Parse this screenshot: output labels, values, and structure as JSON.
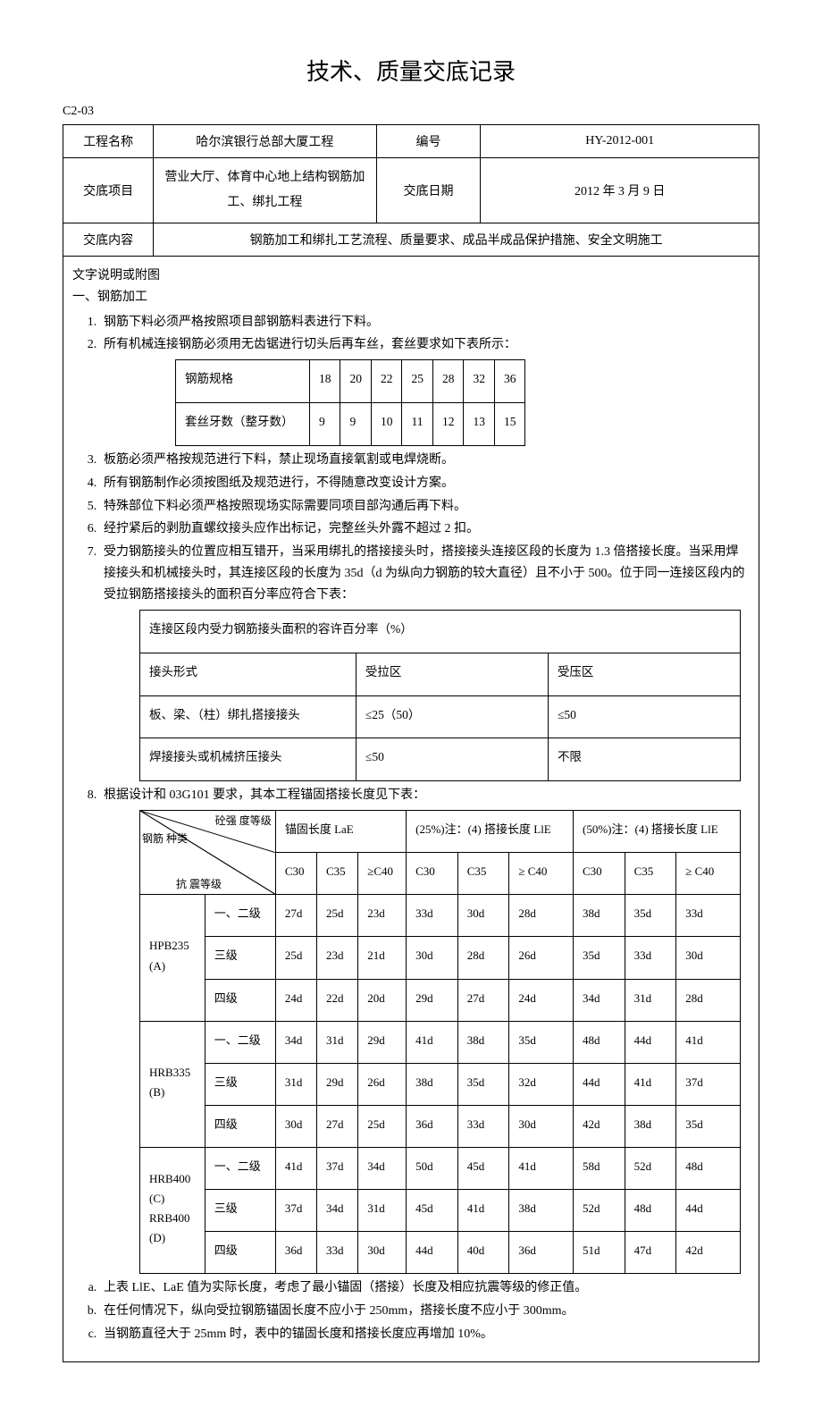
{
  "title": "技术、质量交底记录",
  "doc_code": "C2-03",
  "header": {
    "project_label": "工程名称",
    "project_value": "哈尔滨银行总部大厦工程",
    "number_label": "编号",
    "number_value": "HY-2012-001",
    "item_label": "交底项目",
    "item_value": "营业大厅、体育中心地上结构钢筋加工、绑扎工程",
    "date_label": "交底日期",
    "date_value": "2012 年 3 月 9 日",
    "content_label": "交底内容",
    "content_value": "钢筋加工和绑扎工艺流程、质量要求、成品半成品保护措施、安全文明施工"
  },
  "body": {
    "intro": "文字说明或附图",
    "sec1_title": "一、钢筋加工",
    "li1": "钢筋下料必须严格按照项目部钢筋料表进行下料。",
    "li2": "所有机械连接钢筋必须用无齿锯进行切头后再车丝，套丝要求如下表所示：",
    "thread_table": {
      "row1_label": "钢筋规格",
      "specs": [
        "18",
        "20",
        "22",
        "25",
        "28",
        "32",
        "36"
      ],
      "row2_label": "套丝牙数（整牙数）",
      "counts": [
        "9",
        "9",
        "10",
        "11",
        "12",
        "13",
        "15"
      ]
    },
    "li3": "板筋必须严格按规范进行下料，禁止现场直接氧割或电焊烧断。",
    "li4": "所有钢筋制作必须按图纸及规范进行，不得随意改变设计方案。",
    "li5": "特殊部位下料必须严格按照现场实际需要同项目部沟通后再下料。",
    "li6": "经拧紧后的剥肋直螺纹接头应作出标记，完整丝头外露不超过 2 扣。",
    "li7": "受力钢筋接头的位置应相互错开，当采用绑扎的搭接接头时，搭接接头连接区段的长度为 1.3 倍搭接长度。当采用焊接接头和机械接头时，其连接区段的长度为 35d（d 为纵向力钢筋的较大直径）且不小于 500。位于同一连接区段内的受拉钢筋搭接接头的面积百分率应符合下表：",
    "joint_table": {
      "header": "连接区段内受力钢筋接头面积的容许百分率（%）",
      "h_form": "接头形式",
      "h_tension": "受拉区",
      "h_comp": "受压区",
      "r1_form": "板、梁、（柱）绑扎搭接接头",
      "r1_t": "≤25（50）",
      "r1_c": "≤50",
      "r2_form": "焊接接头或机械挤压接头",
      "r2_t": "≤50",
      "r2_c": "不限"
    },
    "li8": "根据设计和 03G101 要求，其本工程锚固搭接长度见下表：",
    "anchor_table": {
      "diag_left": "钢筋\n种类",
      "diag_top": "砼强\n度等级",
      "diag_bottom": "抗\n震等级",
      "h_anchor": "锚固长度 LaE",
      "h_25": "(25%)注：(4) 搭接长度 LlE",
      "h_50": "(50%)注：(4) 搭接长度 LlE",
      "grades": [
        "C30",
        "C35",
        "≥C40",
        "C30",
        "C35",
        "≥\nC40",
        "C30",
        "C35",
        "≥\nC40"
      ],
      "rows": [
        {
          "type": "HPB235\n(A)",
          "level": "一、二级",
          "cells": [
            "27d",
            "25d",
            "23d",
            "33d",
            "30d",
            "28d",
            "38d",
            "35d",
            "33d"
          ]
        },
        {
          "type": "",
          "level": "三级",
          "cells": [
            "25d",
            "23d",
            "21d",
            "30d",
            "28d",
            "26d",
            "35d",
            "33d",
            "30d"
          ]
        },
        {
          "type": "",
          "level": "四级",
          "cells": [
            "24d",
            "22d",
            "20d",
            "29d",
            "27d",
            "24d",
            "34d",
            "31d",
            "28d"
          ]
        },
        {
          "type": "HRB335\n(B)",
          "level": "一、二级",
          "cells": [
            "34d",
            "31d",
            "29d",
            "41d",
            "38d",
            "35d",
            "48d",
            "44d",
            "41d"
          ]
        },
        {
          "type": "",
          "level": "三级",
          "cells": [
            "31d",
            "29d",
            "26d",
            "38d",
            "35d",
            "32d",
            "44d",
            "41d",
            "37d"
          ]
        },
        {
          "type": "",
          "level": "四级",
          "cells": [
            "30d",
            "27d",
            "25d",
            "36d",
            "33d",
            "30d",
            "42d",
            "38d",
            "35d"
          ]
        },
        {
          "type": "HRB400\n(C)\nRRB400\n(D)",
          "level": "一、二级",
          "cells": [
            "41d",
            "37d",
            "34d",
            "50d",
            "45d",
            "41d",
            "58d",
            "52d",
            "48d"
          ]
        },
        {
          "type": "",
          "level": "三级",
          "cells": [
            "37d",
            "34d",
            "31d",
            "45d",
            "41d",
            "38d",
            "52d",
            "48d",
            "44d"
          ]
        },
        {
          "type": "",
          "level": "四级",
          "cells": [
            "36d",
            "33d",
            "30d",
            "44d",
            "40d",
            "36d",
            "51d",
            "47d",
            "42d"
          ]
        }
      ]
    },
    "note_a": "上表 LlE、LaE 值为实际长度，考虑了最小锚固（搭接）长度及相应抗震等级的修正值。",
    "note_b": "在任何情况下，纵向受拉钢筋锚固长度不应小于 250mm，搭接长度不应小于 300mm。",
    "note_c": "当钢筋直径大于 25mm 时，表中的锚固长度和搭接长度应再增加 10%。"
  }
}
